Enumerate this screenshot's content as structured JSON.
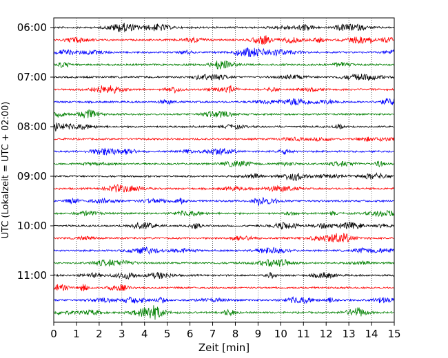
{
  "chart_data": {
    "type": "line",
    "title": "",
    "xlabel": "Zeit  [min]",
    "ylabel": "UTC (Lokalzeit = UTC + 02:00)",
    "xlim": [
      0,
      15
    ],
    "x_ticks": [
      "0",
      "1",
      "2",
      "3",
      "4",
      "5",
      "6",
      "7",
      "8",
      "9",
      "10",
      "11",
      "12",
      "13",
      "14",
      "15"
    ],
    "y_tick_labels": [
      "06:00",
      "07:00",
      "08:00",
      "09:00",
      "10:00",
      "11:00"
    ],
    "grid": "vertical-dotted",
    "trace_start": "06:00",
    "trace_end": "11:45",
    "trace_interval_min": 15,
    "trace_colors": [
      "#000000",
      "#ff0000",
      "#0000ff",
      "#008000"
    ]
  }
}
